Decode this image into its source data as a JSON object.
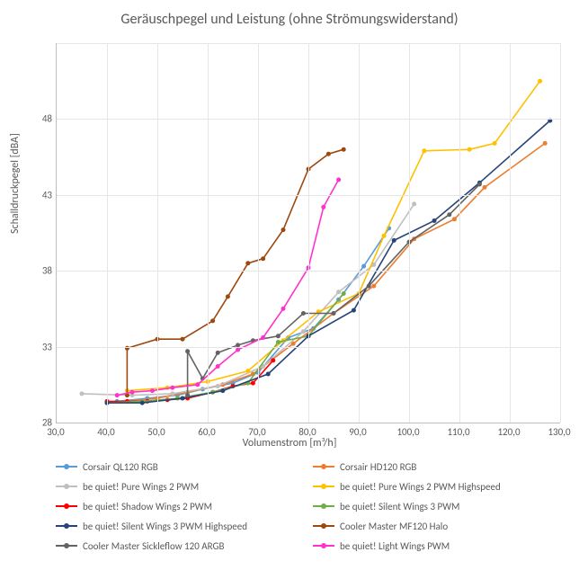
{
  "chart": {
    "type": "line",
    "title": "Geräuschpegel und Leistung (ohne Strömungswiderstand)",
    "title_fontsize": 16,
    "title_color": "#595959",
    "background_color": "#ffffff",
    "grid_color": "#e6e6e6",
    "axis_color": "#bfbfbf",
    "tick_color": "#595959",
    "tick_fontsize": 11,
    "label_fontsize": 12,
    "x_axis": {
      "label": "Volumenstrom  [m³/h]",
      "min": 30.0,
      "max": 130.0,
      "tick_step": 10.0,
      "decimals": 1
    },
    "y_axis": {
      "label": "Schalldruckpegel  [dBA]",
      "min": 28,
      "max": 53,
      "tick_step": 5,
      "decimals": 0
    },
    "marker_size": 5,
    "line_width": 1.6,
    "series": [
      {
        "name": "Corsair QL120 RGB",
        "color": "#5b9bd5",
        "x": [
          42,
          48,
          54,
          59,
          65,
          70,
          76,
          81,
          86,
          91,
          96
        ],
        "y": [
          29.4,
          29.6,
          29.8,
          30.2,
          30.6,
          31.3,
          33.6,
          34.2,
          36.1,
          38.3,
          40.8
        ]
      },
      {
        "name": "Corsair HD120 RGB",
        "color": "#ed7d31",
        "x": [
          44,
          50,
          56,
          63,
          69,
          77,
          85,
          93,
          101,
          109,
          115,
          127
        ],
        "y": [
          29.4,
          29.6,
          30.0,
          30.5,
          31.2,
          33.2,
          35.2,
          37.0,
          40.1,
          41.4,
          43.5,
          46.4
        ]
      },
      {
        "name": "be quiet! Pure Wings 2 PWM",
        "color": "#bfbfbf",
        "x": [
          35,
          45,
          53,
          62,
          71,
          79,
          86,
          93,
          101
        ],
        "y": [
          29.9,
          29.8,
          29.9,
          30.4,
          31.7,
          34.0,
          36.6,
          38.4,
          42.4
        ]
      },
      {
        "name": "be quiet! Pure Wings 2 PWM Highspeed",
        "color": "#ffc000",
        "x": [
          44,
          52,
          60,
          68,
          75,
          82,
          90,
          95,
          103,
          112,
          117,
          126
        ],
        "y": [
          30.1,
          30.3,
          30.7,
          31.4,
          33.4,
          35.3,
          36.5,
          40.3,
          45.9,
          46.0,
          46.4,
          50.5
        ]
      },
      {
        "name": "be quiet! Shadow Wings 2 PWM",
        "color": "#ff0000",
        "x": [
          40,
          44,
          48,
          52,
          56,
          61,
          65,
          69,
          73
        ],
        "y": [
          29.4,
          29.4,
          29.4,
          29.5,
          29.6,
          30.0,
          30.4,
          30.6,
          32.1
        ]
      },
      {
        "name": "be quiet! Silent Wings 3 PWM",
        "color": "#70ad47",
        "x": [
          40,
          47,
          54,
          61,
          68,
          74,
          80,
          87
        ],
        "y": [
          29.3,
          29.4,
          29.6,
          30.0,
          30.6,
          33.3,
          33.7,
          36.5
        ]
      },
      {
        "name": "be quiet! Silent Wings 3 PWM Highspeed",
        "color": "#264478",
        "x": [
          40,
          47,
          55,
          63,
          72,
          80,
          89,
          97,
          105,
          114,
          128
        ],
        "y": [
          29.3,
          29.3,
          29.6,
          30.1,
          31.2,
          33.7,
          35.4,
          40.0,
          41.3,
          43.8,
          47.9
        ]
      },
      {
        "name": "Cooler Master MF120 Halo",
        "color": "#9e480e",
        "x": [
          44,
          44,
          50,
          55,
          61,
          64,
          68,
          71,
          75,
          80,
          84,
          87
        ],
        "y": [
          29.8,
          32.9,
          33.5,
          33.5,
          34.7,
          36.3,
          38.5,
          38.8,
          40.7,
          44.7,
          45.7,
          46.0
        ]
      },
      {
        "name": "Cooler Master Sickleflow 120 ARGB",
        "color": "#636363",
        "x": [
          56,
          56,
          59,
          62,
          66,
          69,
          74,
          79,
          85,
          92,
          100,
          108,
          114
        ],
        "y": [
          29.8,
          32.7,
          30.9,
          32.6,
          33.1,
          33.4,
          33.7,
          35.2,
          35.2,
          37.0,
          39.9,
          41.7,
          43.7
        ]
      },
      {
        "name": "be quiet! Light Wings PWM",
        "color": "#ff33cc",
        "x": [
          42,
          45,
          49,
          53,
          58,
          62,
          66,
          71,
          75,
          80,
          83,
          86
        ],
        "y": [
          29.8,
          30.0,
          30.1,
          30.3,
          30.5,
          31.7,
          32.8,
          33.6,
          35.5,
          38.2,
          42.2,
          44.0
        ]
      }
    ]
  }
}
